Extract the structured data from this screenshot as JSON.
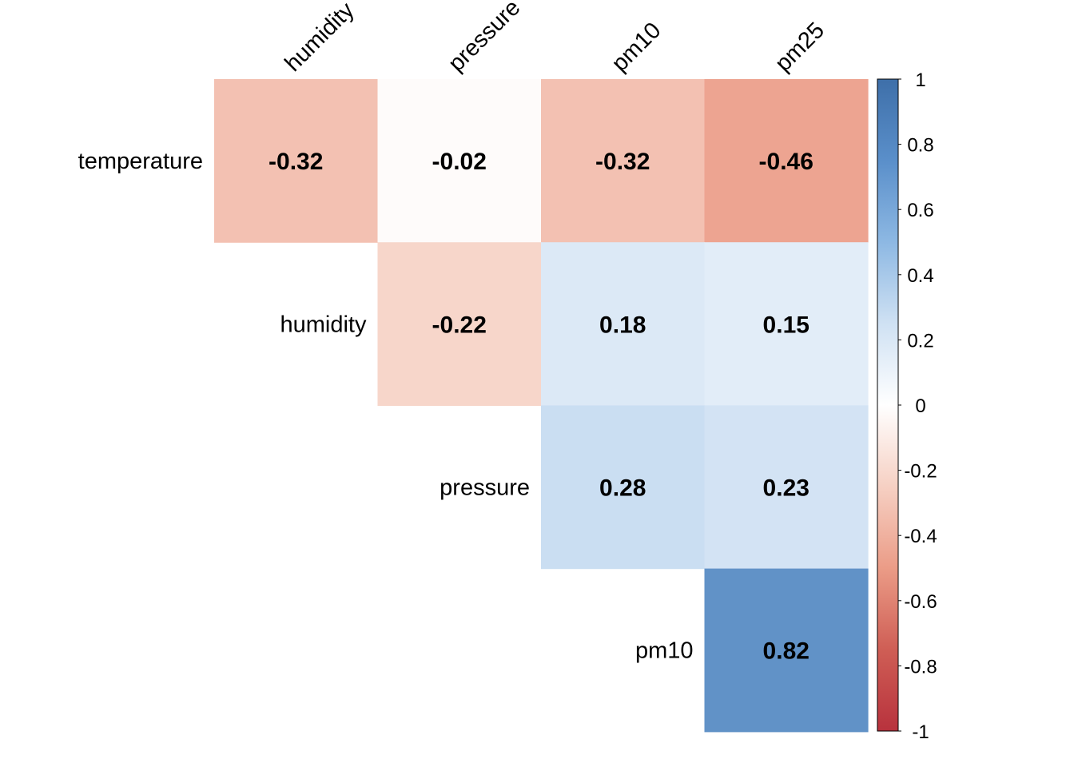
{
  "chart_data": {
    "type": "heatmap",
    "title": "",
    "xlabel": "",
    "ylabel": "",
    "rows": [
      "temperature",
      "humidity",
      "pressure",
      "pm10"
    ],
    "columns": [
      "humidity",
      "pressure",
      "pm10",
      "pm25"
    ],
    "cells": [
      {
        "row": "temperature",
        "col": "humidity",
        "value": -0.32,
        "label": "-0.32"
      },
      {
        "row": "temperature",
        "col": "pressure",
        "value": -0.02,
        "label": "-0.02"
      },
      {
        "row": "temperature",
        "col": "pm10",
        "value": -0.32,
        "label": "-0.32"
      },
      {
        "row": "temperature",
        "col": "pm25",
        "value": -0.46,
        "label": "-0.46"
      },
      {
        "row": "humidity",
        "col": "pressure",
        "value": -0.22,
        "label": "-0.22"
      },
      {
        "row": "humidity",
        "col": "pm10",
        "value": 0.18,
        "label": "0.18"
      },
      {
        "row": "humidity",
        "col": "pm25",
        "value": 0.15,
        "label": "0.15"
      },
      {
        "row": "pressure",
        "col": "pm10",
        "value": 0.28,
        "label": "0.28"
      },
      {
        "row": "pressure",
        "col": "pm25",
        "value": 0.23,
        "label": "0.23"
      },
      {
        "row": "pm10",
        "col": "pm25",
        "value": 0.82,
        "label": "0.82"
      }
    ],
    "row_label_positions": "diagonal",
    "colorbar": {
      "range": [
        -1,
        1
      ],
      "ticks": [
        "1",
        "0.8",
        "0.6",
        "0.4",
        "0.2",
        "0",
        "-0.2",
        "-0.4",
        "-0.6",
        "-0.8",
        "-1"
      ],
      "tick_values": [
        1,
        0.8,
        0.6,
        0.4,
        0.2,
        0,
        -0.2,
        -0.4,
        -0.6,
        -0.8,
        -1
      ],
      "placement": "right"
    },
    "colors": {
      "negative": "#b2182b",
      "mid_negative": "#d6604d",
      "light_negative": "#f4a582",
      "pale_negative": "#fddbc7",
      "zero": "#ffffff",
      "pale_positive": "#d1e5f0",
      "light_positive": "#92c5de",
      "mid_positive": "#4393c3",
      "positive": "#2166ac"
    },
    "grid": false
  }
}
